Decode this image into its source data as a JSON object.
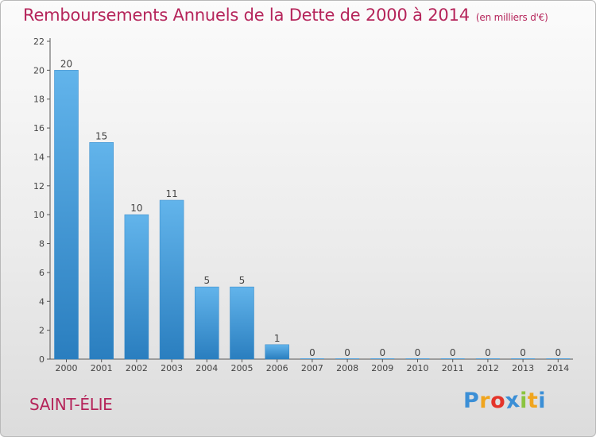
{
  "title": "Remboursements Annuels de la Dette de 2000 à 2014",
  "subtitle": "(en milliers d'€)",
  "commune": "SAINT-ÉLIE",
  "logo": {
    "letters": [
      "P",
      "r",
      "o",
      "x",
      "i",
      "t",
      "i"
    ],
    "colors": [
      "#3b8fd6",
      "#f0a51e",
      "#e4342a",
      "#3b8fd6",
      "#8bc43f",
      "#f0a51e",
      "#3b8fd6"
    ]
  },
  "colors": {
    "title": "#b5245a",
    "bar_light": "#5fb1e9",
    "bar_dark": "#2b7fc0",
    "axis": "#555555",
    "label": "#444444"
  },
  "chart_data": {
    "type": "bar",
    "title": "Remboursements Annuels de la Dette de 2000 à 2014",
    "ylabel": "en milliers d'€",
    "xlabel": "",
    "categories": [
      "2000",
      "2001",
      "2002",
      "2003",
      "2004",
      "2005",
      "2006",
      "2007",
      "2008",
      "2009",
      "2010",
      "2011",
      "2012",
      "2013",
      "2014"
    ],
    "values": [
      20,
      15,
      10,
      11,
      5,
      5,
      1,
      0,
      0,
      0,
      0,
      0,
      0,
      0,
      0
    ],
    "data_labels": [
      "20",
      "15",
      "10",
      "11",
      "5",
      "5",
      "1",
      "0",
      "0",
      "0",
      "0",
      "0",
      "0",
      "0",
      "0"
    ],
    "ylim": [
      0,
      22
    ],
    "yticks": [
      0,
      2,
      4,
      6,
      8,
      10,
      12,
      14,
      16,
      18,
      20,
      22
    ],
    "grid": false
  }
}
